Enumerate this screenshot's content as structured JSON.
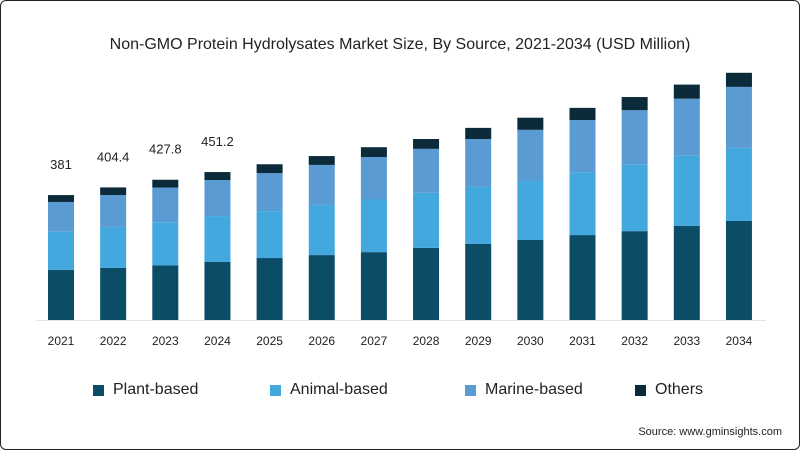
{
  "title": "Non-GMO Protein Hydrolysates Market Size, By Source, 2021-2034 (USD Million)",
  "source": "Source: www.gminsights.com",
  "colors": {
    "Plant-based": "#0b4d67",
    "Animal-based": "#42a8de",
    "Marine-based": "#5b9bd3",
    "Others": "#0b2a3a"
  },
  "chart_data": {
    "type": "bar",
    "stacked": true,
    "title": "Non-GMO Protein Hydrolysates Market Size, By Source, 2021-2034 (USD Million)",
    "xlabel": "",
    "ylabel": "",
    "ylim": [
      0,
      800
    ],
    "grid": false,
    "legend_position": "bottom",
    "categories": [
      "2021",
      "2022",
      "2023",
      "2024",
      "2025",
      "2026",
      "2027",
      "2028",
      "2029",
      "2030",
      "2031",
      "2032",
      "2033",
      "2034"
    ],
    "series": [
      {
        "name": "Plant-based",
        "values": [
          153,
          159,
          167,
          177,
          189,
          198,
          207,
          220,
          232,
          244,
          259,
          271,
          287,
          302
        ]
      },
      {
        "name": "Animal-based",
        "values": [
          116,
          125,
          131,
          140,
          143,
          153,
          162,
          168,
          174,
          180,
          192,
          204,
          214,
          223
        ]
      },
      {
        "name": "Marine-based",
        "values": [
          91,
          97,
          106,
          110,
          116,
          122,
          128,
          134,
          146,
          156,
          159,
          165,
          174,
          186
        ]
      },
      {
        "name": "Others",
        "values": [
          21,
          23.4,
          23.8,
          24.2,
          27,
          27,
          30,
          30,
          34,
          37,
          37,
          40,
          43,
          43
        ]
      }
    ],
    "data_labels": [
      "381",
      "404.4",
      "427.8",
      "451.2"
    ]
  }
}
